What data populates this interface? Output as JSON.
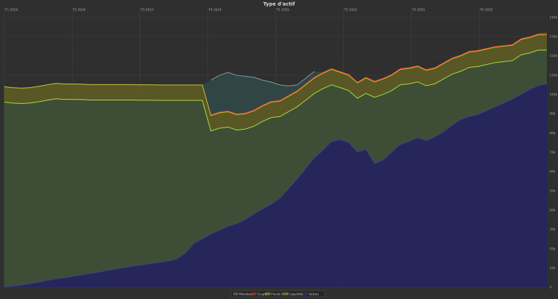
{
  "chart_data": {
    "type": "area",
    "stacked": true,
    "title": "Type d'actif",
    "x_labels": [
      "T1 2024",
      "T2 2024",
      "T3 2024",
      "T4 2024",
      "T1 2025",
      "T2 2025",
      "T3 2025",
      "T4 2025"
    ],
    "ylim": [
      0,
      145000
    ],
    "y_ticks": [
      0,
      10000,
      20000,
      30000,
      40000,
      50000,
      60000,
      70000,
      80000,
      90000,
      100000,
      110000,
      120000,
      130000,
      140000
    ],
    "y_tick_labels": [
      "0",
      "10k",
      "20k",
      "30k",
      "40k",
      "50k",
      "60k",
      "70k",
      "80k",
      "90k",
      "100k",
      "110k",
      "120k",
      "130k",
      "140k"
    ],
    "grid": true,
    "legend_position": "bottom",
    "series": [
      {
        "name": "Action",
        "color": "#26265e",
        "line": "#3a3a90",
        "values": [
          0,
          500,
          1000,
          1800,
          2500,
          3500,
          4200,
          4800,
          5600,
          6300,
          7000,
          7800,
          8600,
          9400,
          10200,
          10800,
          11500,
          12200,
          12800,
          13500,
          14500,
          17500,
          22500,
          25000,
          27500,
          29500,
          31500,
          33000,
          35000,
          38000,
          40500,
          43000,
          46000,
          51000,
          56000,
          61500,
          67000,
          71000,
          75500,
          76500,
          75000,
          70000,
          71500,
          64000,
          66000,
          70000,
          74000,
          75500,
          77500,
          76000,
          78000,
          80500,
          84000,
          87000,
          88500,
          89500,
          91500,
          93500,
          95500,
          97500,
          100000,
          102500,
          104500,
          105500
        ]
      },
      {
        "name": "Liquidité",
        "color": "#3f5037",
        "line": "#a8e040",
        "values": [
          96000,
          95000,
          94300,
          93700,
          93700,
          93500,
          93500,
          92600,
          91800,
          91000,
          90100,
          89300,
          88500,
          87700,
          86900,
          86300,
          85500,
          84800,
          84100,
          83400,
          82400,
          79400,
          74400,
          71900,
          53500,
          53000,
          51500,
          48500,
          47000,
          45500,
          45500,
          45000,
          42500,
          40000,
          37500,
          35500,
          33500,
          32000,
          29500,
          27000,
          27000,
          28000,
          29000,
          34500,
          34000,
          32000,
          31000,
          30000,
          29000,
          28500,
          27500,
          27500,
          26500,
          25000,
          25500,
          25000,
          24000,
          23000,
          21500,
          20000,
          20500,
          19000,
          18500,
          17500
        ]
      },
      {
        "name": "Fonds €",
        "color": "#5c5a25",
        "line": "#c8c83a",
        "values": [
          8000,
          8000,
          8000,
          8000,
          8000,
          8000,
          8000,
          8000,
          8000,
          8000,
          8000,
          8000,
          8000,
          8000,
          8000,
          8000,
          8000,
          8000,
          8000,
          8000,
          8000,
          8000,
          8000,
          8000,
          8000,
          8000,
          8000,
          8000,
          8000,
          8000,
          8000,
          8000,
          8000,
          8000,
          8000,
          8000,
          8000,
          8000,
          8000,
          8000,
          8000,
          8000,
          8000,
          8000,
          8000,
          8000,
          8000,
          8000,
          8000,
          8000,
          8000,
          8000,
          8000,
          8000,
          8000,
          8000,
          8000,
          8000,
          8000,
          8000,
          8000,
          8000,
          8000,
          8000
        ]
      },
      {
        "name": "Crypto",
        "color": "#7a2a1a",
        "line": "#e03a20",
        "values": [
          0,
          0,
          0,
          0,
          0,
          0,
          0,
          0,
          0,
          0,
          0,
          0,
          0,
          0,
          0,
          0,
          0,
          0,
          0,
          0,
          0,
          0,
          0,
          0,
          400,
          400,
          400,
          400,
          400,
          400,
          400,
          400,
          400,
          400,
          400,
          400,
          400,
          400,
          400,
          400,
          400,
          400,
          400,
          400,
          400,
          400,
          400,
          400,
          400,
          400,
          400,
          400,
          400,
          400,
          400,
          400,
          400,
          400,
          400,
          400,
          400,
          400,
          400,
          800
        ]
      },
      {
        "name": "Monétaire",
        "color": "#334747",
        "line": "#7aa0a0",
        "values": [
          0,
          0,
          0,
          0,
          0,
          0,
          0,
          0,
          0,
          0,
          0,
          0,
          0,
          0,
          0,
          0,
          0,
          0,
          0,
          0,
          0,
          0,
          0,
          0,
          18000,
          19000,
          20000,
          20000,
          19000,
          17000,
          13000,
          10000,
          8000,
          5000,
          3000,
          3000,
          3000,
          0,
          0,
          0,
          0,
          0,
          0,
          0,
          0,
          0,
          0,
          0,
          0,
          0,
          0,
          0,
          0,
          0,
          0,
          0,
          0,
          0,
          0,
          0,
          0,
          0,
          0,
          0
        ]
      }
    ]
  }
}
